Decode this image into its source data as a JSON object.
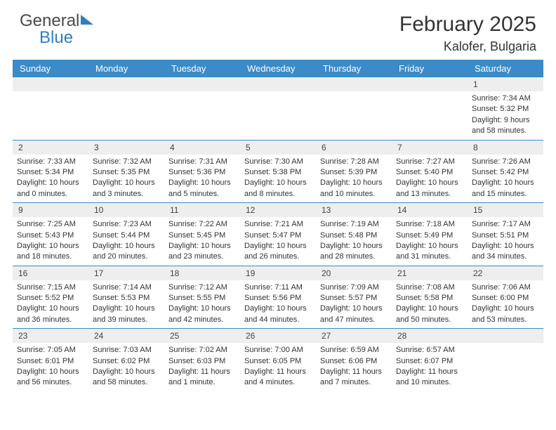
{
  "header": {
    "logo_text_1": "General",
    "logo_text_2": "Blue",
    "month_title": "February 2025",
    "location": "Kalofer, Bulgaria"
  },
  "colors": {
    "header_bar": "#3b8bc9",
    "logo_blue": "#2f7fc1",
    "day_num_bg": "#eeeeee",
    "divider": "#3b8bc9",
    "text": "#333333"
  },
  "day_names": [
    "Sunday",
    "Monday",
    "Tuesday",
    "Wednesday",
    "Thursday",
    "Friday",
    "Saturday"
  ],
  "weeks": [
    [
      {
        "empty": true
      },
      {
        "empty": true
      },
      {
        "empty": true
      },
      {
        "empty": true
      },
      {
        "empty": true
      },
      {
        "empty": true
      },
      {
        "num": "1",
        "sunrise": "Sunrise: 7:34 AM",
        "sunset": "Sunset: 5:32 PM",
        "daylight": "Daylight: 9 hours and 58 minutes."
      }
    ],
    [
      {
        "num": "2",
        "sunrise": "Sunrise: 7:33 AM",
        "sunset": "Sunset: 5:34 PM",
        "daylight": "Daylight: 10 hours and 0 minutes."
      },
      {
        "num": "3",
        "sunrise": "Sunrise: 7:32 AM",
        "sunset": "Sunset: 5:35 PM",
        "daylight": "Daylight: 10 hours and 3 minutes."
      },
      {
        "num": "4",
        "sunrise": "Sunrise: 7:31 AM",
        "sunset": "Sunset: 5:36 PM",
        "daylight": "Daylight: 10 hours and 5 minutes."
      },
      {
        "num": "5",
        "sunrise": "Sunrise: 7:30 AM",
        "sunset": "Sunset: 5:38 PM",
        "daylight": "Daylight: 10 hours and 8 minutes."
      },
      {
        "num": "6",
        "sunrise": "Sunrise: 7:28 AM",
        "sunset": "Sunset: 5:39 PM",
        "daylight": "Daylight: 10 hours and 10 minutes."
      },
      {
        "num": "7",
        "sunrise": "Sunrise: 7:27 AM",
        "sunset": "Sunset: 5:40 PM",
        "daylight": "Daylight: 10 hours and 13 minutes."
      },
      {
        "num": "8",
        "sunrise": "Sunrise: 7:26 AM",
        "sunset": "Sunset: 5:42 PM",
        "daylight": "Daylight: 10 hours and 15 minutes."
      }
    ],
    [
      {
        "num": "9",
        "sunrise": "Sunrise: 7:25 AM",
        "sunset": "Sunset: 5:43 PM",
        "daylight": "Daylight: 10 hours and 18 minutes."
      },
      {
        "num": "10",
        "sunrise": "Sunrise: 7:23 AM",
        "sunset": "Sunset: 5:44 PM",
        "daylight": "Daylight: 10 hours and 20 minutes."
      },
      {
        "num": "11",
        "sunrise": "Sunrise: 7:22 AM",
        "sunset": "Sunset: 5:45 PM",
        "daylight": "Daylight: 10 hours and 23 minutes."
      },
      {
        "num": "12",
        "sunrise": "Sunrise: 7:21 AM",
        "sunset": "Sunset: 5:47 PM",
        "daylight": "Daylight: 10 hours and 26 minutes."
      },
      {
        "num": "13",
        "sunrise": "Sunrise: 7:19 AM",
        "sunset": "Sunset: 5:48 PM",
        "daylight": "Daylight: 10 hours and 28 minutes."
      },
      {
        "num": "14",
        "sunrise": "Sunrise: 7:18 AM",
        "sunset": "Sunset: 5:49 PM",
        "daylight": "Daylight: 10 hours and 31 minutes."
      },
      {
        "num": "15",
        "sunrise": "Sunrise: 7:17 AM",
        "sunset": "Sunset: 5:51 PM",
        "daylight": "Daylight: 10 hours and 34 minutes."
      }
    ],
    [
      {
        "num": "16",
        "sunrise": "Sunrise: 7:15 AM",
        "sunset": "Sunset: 5:52 PM",
        "daylight": "Daylight: 10 hours and 36 minutes."
      },
      {
        "num": "17",
        "sunrise": "Sunrise: 7:14 AM",
        "sunset": "Sunset: 5:53 PM",
        "daylight": "Daylight: 10 hours and 39 minutes."
      },
      {
        "num": "18",
        "sunrise": "Sunrise: 7:12 AM",
        "sunset": "Sunset: 5:55 PM",
        "daylight": "Daylight: 10 hours and 42 minutes."
      },
      {
        "num": "19",
        "sunrise": "Sunrise: 7:11 AM",
        "sunset": "Sunset: 5:56 PM",
        "daylight": "Daylight: 10 hours and 44 minutes."
      },
      {
        "num": "20",
        "sunrise": "Sunrise: 7:09 AM",
        "sunset": "Sunset: 5:57 PM",
        "daylight": "Daylight: 10 hours and 47 minutes."
      },
      {
        "num": "21",
        "sunrise": "Sunrise: 7:08 AM",
        "sunset": "Sunset: 5:58 PM",
        "daylight": "Daylight: 10 hours and 50 minutes."
      },
      {
        "num": "22",
        "sunrise": "Sunrise: 7:06 AM",
        "sunset": "Sunset: 6:00 PM",
        "daylight": "Daylight: 10 hours and 53 minutes."
      }
    ],
    [
      {
        "num": "23",
        "sunrise": "Sunrise: 7:05 AM",
        "sunset": "Sunset: 6:01 PM",
        "daylight": "Daylight: 10 hours and 56 minutes."
      },
      {
        "num": "24",
        "sunrise": "Sunrise: 7:03 AM",
        "sunset": "Sunset: 6:02 PM",
        "daylight": "Daylight: 10 hours and 58 minutes."
      },
      {
        "num": "25",
        "sunrise": "Sunrise: 7:02 AM",
        "sunset": "Sunset: 6:03 PM",
        "daylight": "Daylight: 11 hours and 1 minute."
      },
      {
        "num": "26",
        "sunrise": "Sunrise: 7:00 AM",
        "sunset": "Sunset: 6:05 PM",
        "daylight": "Daylight: 11 hours and 4 minutes."
      },
      {
        "num": "27",
        "sunrise": "Sunrise: 6:59 AM",
        "sunset": "Sunset: 6:06 PM",
        "daylight": "Daylight: 11 hours and 7 minutes."
      },
      {
        "num": "28",
        "sunrise": "Sunrise: 6:57 AM",
        "sunset": "Sunset: 6:07 PM",
        "daylight": "Daylight: 11 hours and 10 minutes."
      },
      {
        "empty": true
      }
    ]
  ]
}
